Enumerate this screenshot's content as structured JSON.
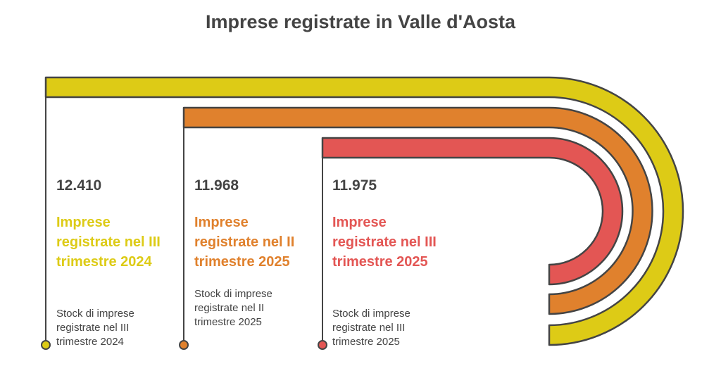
{
  "title": "Imprese registrate in Valle d'Aosta",
  "items": [
    {
      "value": "12.410",
      "label": "Imprese registrate nel III trimestre 2024",
      "description": "Stock di imprese registrate nel III trimestre 2024",
      "color": "#DDCB16"
    },
    {
      "value": "11.968",
      "label": "Imprese registrate nel II trimestre 2025",
      "description": "Stock di imprese registrate nel II trimestre 2025",
      "color": "#E0812D"
    },
    {
      "value": "11.975",
      "label": "Imprese registrate nel III trimestre 2025",
      "description": "Stock di imprese registrate nel III trimestre 2025",
      "color": "#E35654"
    }
  ]
}
